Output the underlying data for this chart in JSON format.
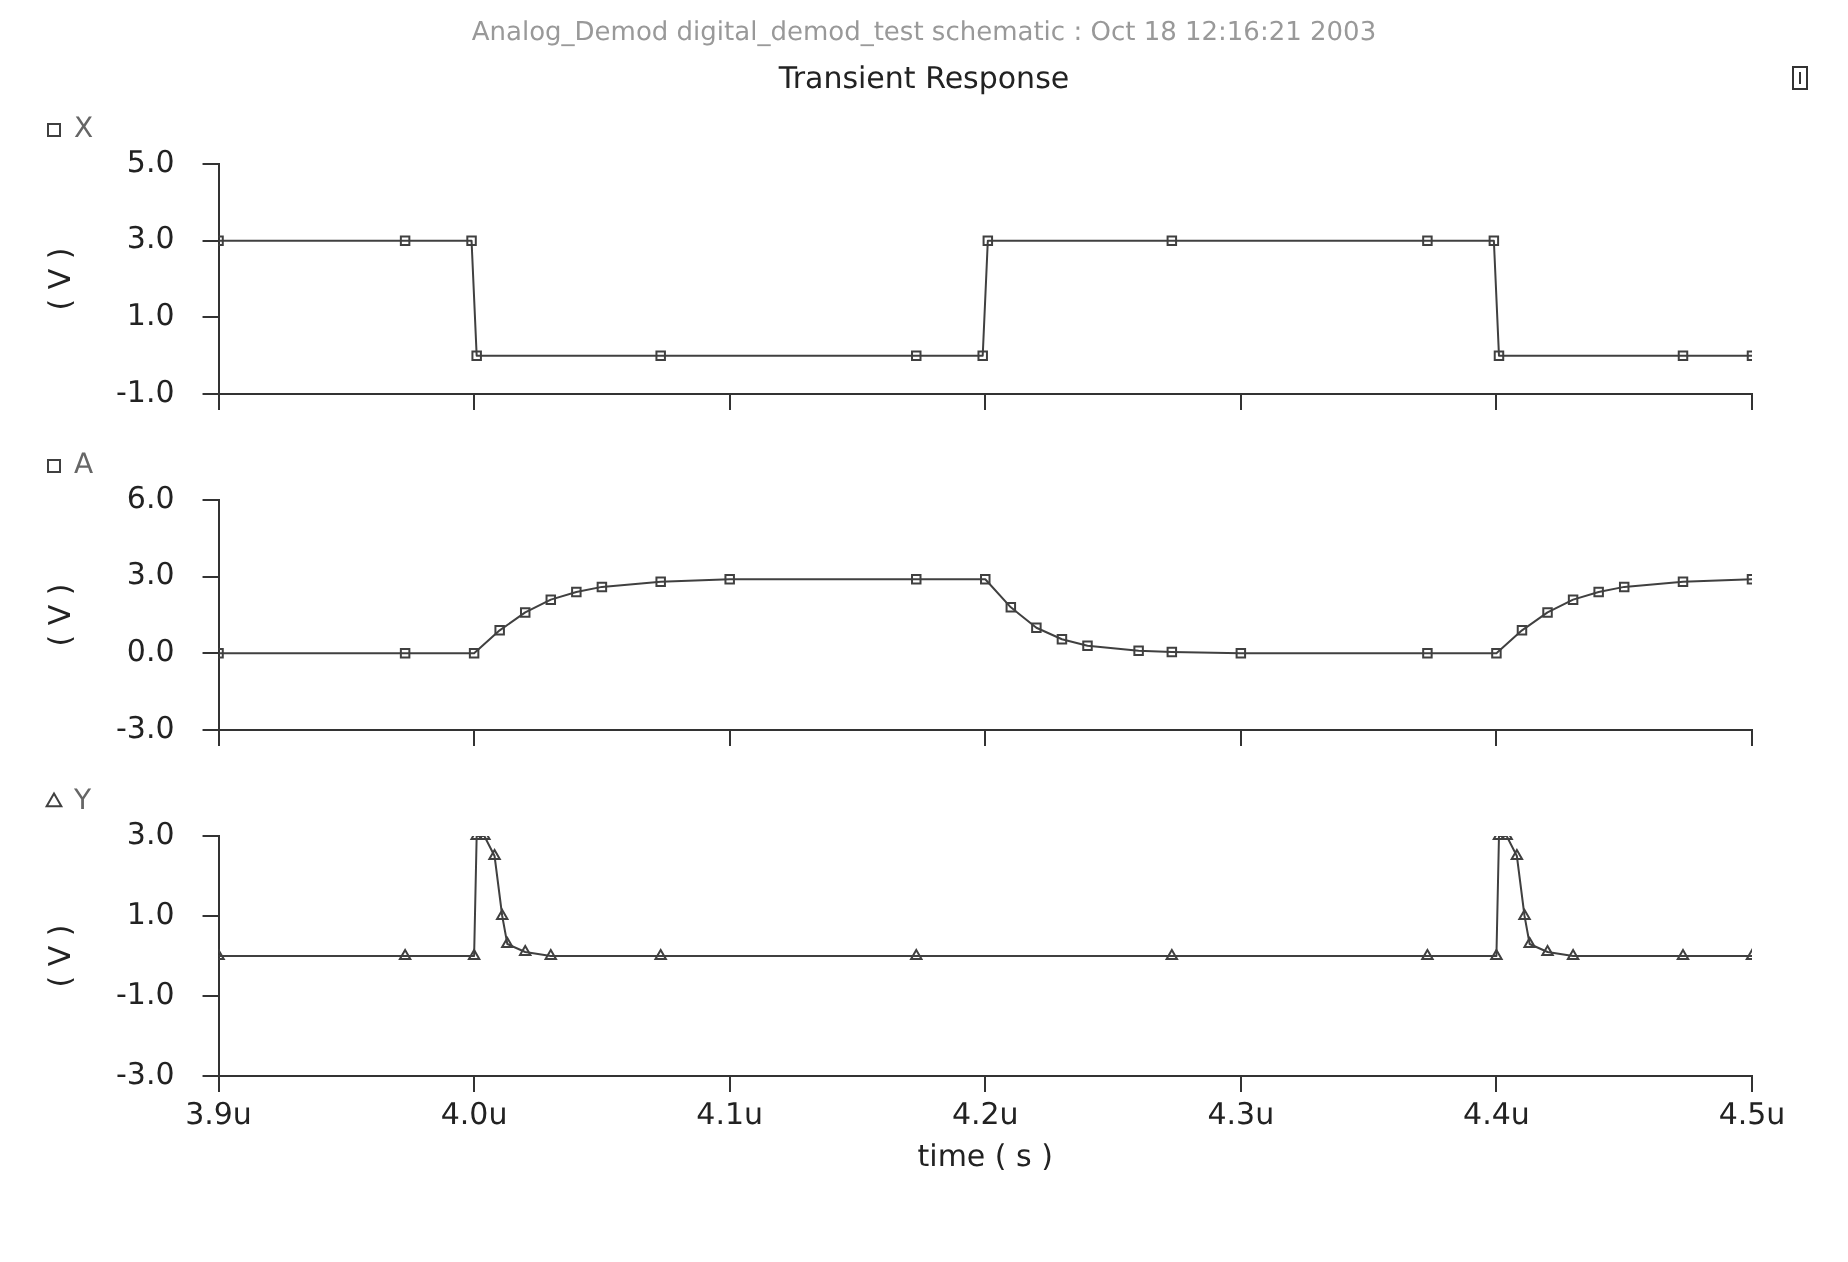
{
  "chart_data": [
    {
      "type": "line",
      "title": "Transient Response",
      "annotations": [
        "Analog_Demod digital_demod_test schematic : Oct 18 12:16:21 2003"
      ],
      "ylabel": "( V )",
      "legend": "top left",
      "marker": "square",
      "tick_labels": "y",
      "x": [
        3.9,
        3.973,
        3.999,
        4.001,
        4.073,
        4.173,
        4.199,
        4.201,
        4.273,
        4.373,
        4.399,
        4.401,
        4.473,
        4.5
      ],
      "series": [
        {
          "name": "X",
          "color": "#404040",
          "values": [
            3,
            3,
            3,
            0,
            0,
            0,
            0,
            3,
            3,
            3,
            3,
            0,
            0,
            0
          ]
        }
      ],
      "xlim": [
        3.9,
        4.5
      ],
      "xticks": [
        {
          "value": 3.9,
          "label": null
        },
        {
          "value": 4.0,
          "label": null
        },
        {
          "value": 4.1,
          "label": null
        },
        {
          "value": 4.2,
          "label": null
        },
        {
          "value": 4.3,
          "label": null
        },
        {
          "value": 4.4,
          "label": null
        },
        {
          "value": 4.5,
          "label": null
        }
      ],
      "ylim": [
        -1,
        5
      ],
      "yticks": [
        {
          "value": -1,
          "label": "-1.0"
        },
        {
          "value": 1,
          "label": "1.0"
        },
        {
          "value": 3,
          "label": "3.0"
        },
        {
          "value": 5,
          "label": "5.0"
        }
      ]
    },
    {
      "type": "line",
      "ylabel": "( V )",
      "legend": "top left",
      "marker": "square",
      "tick_labels": "y",
      "x": [
        3.9,
        3.973,
        4.0,
        4.01,
        4.02,
        4.03,
        4.04,
        4.05,
        4.073,
        4.1,
        4.173,
        4.2,
        4.21,
        4.22,
        4.23,
        4.24,
        4.26,
        4.273,
        4.3,
        4.373,
        4.4,
        4.41,
        4.42,
        4.43,
        4.44,
        4.45,
        4.473,
        4.5
      ],
      "series": [
        {
          "name": "A",
          "color": "#404040",
          "values": [
            0,
            0,
            0,
            0.9,
            1.6,
            2.1,
            2.4,
            2.6,
            2.8,
            2.9,
            2.9,
            2.9,
            1.8,
            1.0,
            0.55,
            0.3,
            0.1,
            0.05,
            0,
            0,
            0,
            0.9,
            1.6,
            2.1,
            2.4,
            2.6,
            2.8,
            2.9
          ]
        }
      ],
      "xlim": [
        3.9,
        4.5
      ],
      "xticks": [
        {
          "value": 3.9,
          "label": null
        },
        {
          "value": 4.0,
          "label": null
        },
        {
          "value": 4.1,
          "label": null
        },
        {
          "value": 4.2,
          "label": null
        },
        {
          "value": 4.3,
          "label": null
        },
        {
          "value": 4.4,
          "label": null
        },
        {
          "value": 4.5,
          "label": null
        }
      ],
      "ylim": [
        -3,
        6
      ],
      "yticks": [
        {
          "value": -3,
          "label": "-3.0"
        },
        {
          "value": 0,
          "label": "0.0"
        },
        {
          "value": 3,
          "label": "3.0"
        },
        {
          "value": 6,
          "label": "6.0"
        }
      ]
    },
    {
      "type": "line",
      "xlabel": "time ( s )",
      "ylabel": "( V )",
      "legend": "top left",
      "marker": "triangle",
      "x": [
        3.9,
        3.973,
        4.0,
        4.001,
        4.004,
        4.008,
        4.011,
        4.013,
        4.02,
        4.03,
        4.073,
        4.173,
        4.273,
        4.373,
        4.4,
        4.401,
        4.404,
        4.408,
        4.411,
        4.413,
        4.42,
        4.43,
        4.473,
        4.5
      ],
      "series": [
        {
          "name": "Y",
          "color": "#404040",
          "values": [
            0,
            0,
            0,
            3,
            3,
            2.5,
            1,
            0.3,
            0.1,
            0,
            0,
            0,
            0,
            0,
            0,
            3,
            3,
            2.5,
            1,
            0.3,
            0.1,
            0,
            0,
            0
          ]
        }
      ],
      "xlim": [
        3.9,
        4.5
      ],
      "xticks": [
        {
          "value": 3.9,
          "label": "3.9u"
        },
        {
          "value": 4.0,
          "label": "4.0u"
        },
        {
          "value": 4.1,
          "label": "4.1u"
        },
        {
          "value": 4.2,
          "label": "4.2u"
        },
        {
          "value": 4.3,
          "label": "4.3u"
        },
        {
          "value": 4.4,
          "label": "4.4u"
        },
        {
          "value": 4.5,
          "label": "4.5u"
        }
      ],
      "ylim": [
        -3,
        3
      ],
      "yticks": [
        {
          "value": -3,
          "label": "-3.0"
        },
        {
          "value": -1,
          "label": "-1.0"
        },
        {
          "value": 1,
          "label": "1.0"
        },
        {
          "value": 3,
          "label": "3.0"
        }
      ]
    }
  ]
}
